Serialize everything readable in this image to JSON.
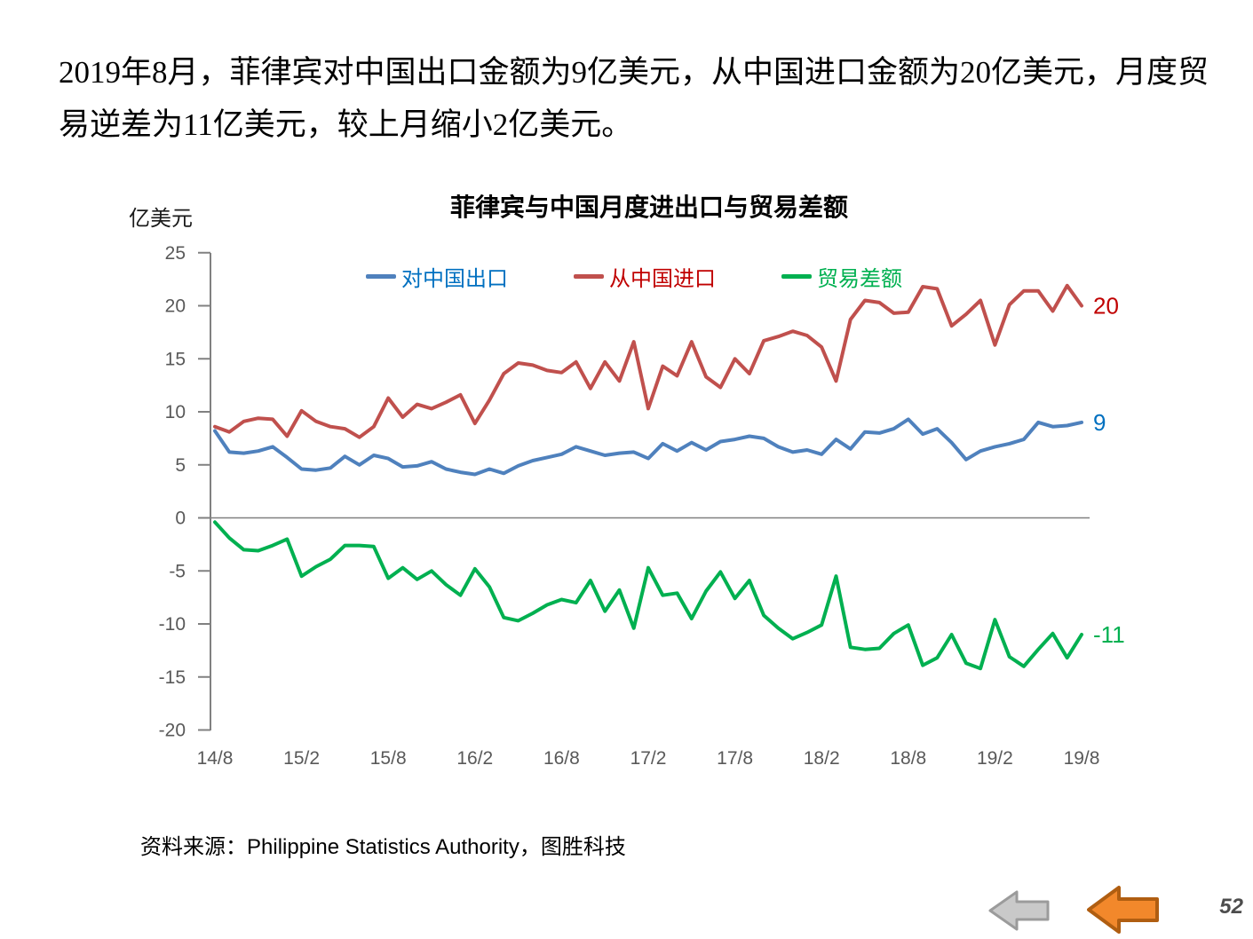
{
  "page": {
    "headline": "2019年8月，菲律宾对中国出口金额为9亿美元，从中国进口金额为20亿美元，元，月度贸易逆差为11亿美元，较上月缩小2亿美元。",
    "headline_display": "2019年8月，菲律宾对中国出口金额为9亿美元，从中国进口金额为20亿美元，月度贸易逆差为11亿美元，较上月缩小2亿美元。",
    "source": {
      "prefix": "资料来源：",
      "body": "Philippine Statistics Authority",
      "suffix": "，图胜科技"
    },
    "page_number": "52",
    "nav_arrows": {
      "gray_fill": "#C9C9C9",
      "gray_stroke": "#9B9B9B",
      "orange_fill": "#F2882B",
      "orange_stroke": "#B05E11"
    }
  },
  "chart_data": {
    "type": "line",
    "title": "菲律宾与中国月度进出口与贸易差额",
    "unit_label": "亿美元",
    "x_frequency": "monthly",
    "n_points": 61,
    "x_range": [
      "2014/8",
      "2019/8"
    ],
    "x_tick_labels": [
      "14/8",
      "15/2",
      "15/8",
      "16/2",
      "16/8",
      "17/2",
      "17/8",
      "18/2",
      "18/8",
      "19/2",
      "19/8"
    ],
    "y_ticks": [
      25,
      20,
      15,
      10,
      5,
      0,
      -5,
      -10,
      -15,
      -20
    ],
    "ylim": [
      -20,
      25
    ],
    "grid": "zero-line-only",
    "legend_position": "top",
    "axis_color": "#808080",
    "tick_text_color": "#595959",
    "series": [
      {
        "name": "对中国出口",
        "color": "#4F81BD",
        "label_color": "#0070C0",
        "end_label": "9",
        "values": [
          8.2,
          6.2,
          6.1,
          6.3,
          6.7,
          5.7,
          4.6,
          4.5,
          4.7,
          5.8,
          5.0,
          5.9,
          5.6,
          4.8,
          4.9,
          5.3,
          4.6,
          4.3,
          4.1,
          4.6,
          4.2,
          4.9,
          5.4,
          5.7,
          6.0,
          6.7,
          6.3,
          5.9,
          6.1,
          6.2,
          5.6,
          7.0,
          6.3,
          7.1,
          6.4,
          7.2,
          7.4,
          7.7,
          7.5,
          6.7,
          6.2,
          6.4,
          6.0,
          7.4,
          6.5,
          8.1,
          8.0,
          8.4,
          9.3,
          7.9,
          8.4,
          7.1,
          5.5,
          6.3,
          6.7,
          7.0,
          7.4,
          9.0,
          8.6,
          8.7,
          9.0
        ]
      },
      {
        "name": "从中国进口",
        "color": "#C0504D",
        "label_color": "#C00000",
        "end_label": "20",
        "values": [
          8.6,
          8.1,
          9.1,
          9.4,
          9.3,
          7.7,
          10.1,
          9.1,
          8.6,
          8.4,
          7.6,
          8.6,
          11.3,
          9.5,
          10.7,
          10.3,
          10.9,
          11.6,
          8.9,
          11.1,
          13.6,
          14.6,
          14.4,
          13.9,
          13.7,
          14.7,
          12.2,
          14.7,
          12.9,
          16.6,
          10.3,
          14.3,
          13.4,
          16.6,
          13.3,
          12.3,
          15.0,
          13.6,
          16.7,
          17.1,
          17.6,
          17.2,
          16.1,
          12.9,
          18.7,
          20.5,
          20.3,
          19.3,
          19.4,
          21.8,
          21.6,
          18.1,
          19.2,
          20.5,
          16.3,
          20.1,
          21.4,
          21.4,
          19.5,
          21.9,
          20.0
        ]
      },
      {
        "name": "贸易差额",
        "color": "#00B050",
        "label_color": "#00B050",
        "end_label": "-11",
        "values": [
          -0.4,
          -1.9,
          -3.0,
          -3.1,
          -2.6,
          -2.0,
          -5.5,
          -4.6,
          -3.9,
          -2.6,
          -2.6,
          -2.7,
          -5.7,
          -4.7,
          -5.8,
          -5.0,
          -6.3,
          -7.3,
          -4.8,
          -6.5,
          -9.4,
          -9.7,
          -9.0,
          -8.2,
          -7.7,
          -8.0,
          -5.9,
          -8.8,
          -6.8,
          -10.4,
          -4.7,
          -7.3,
          -7.1,
          -9.5,
          -6.9,
          -5.1,
          -7.6,
          -5.9,
          -9.2,
          -10.4,
          -11.4,
          -10.8,
          -10.1,
          -5.5,
          -12.2,
          -12.4,
          -12.3,
          -10.9,
          -10.1,
          -13.9,
          -13.2,
          -11.0,
          -13.7,
          -14.2,
          -9.6,
          -13.1,
          -14.0,
          -12.4,
          -10.9,
          -13.2,
          -11.0
        ]
      }
    ]
  }
}
